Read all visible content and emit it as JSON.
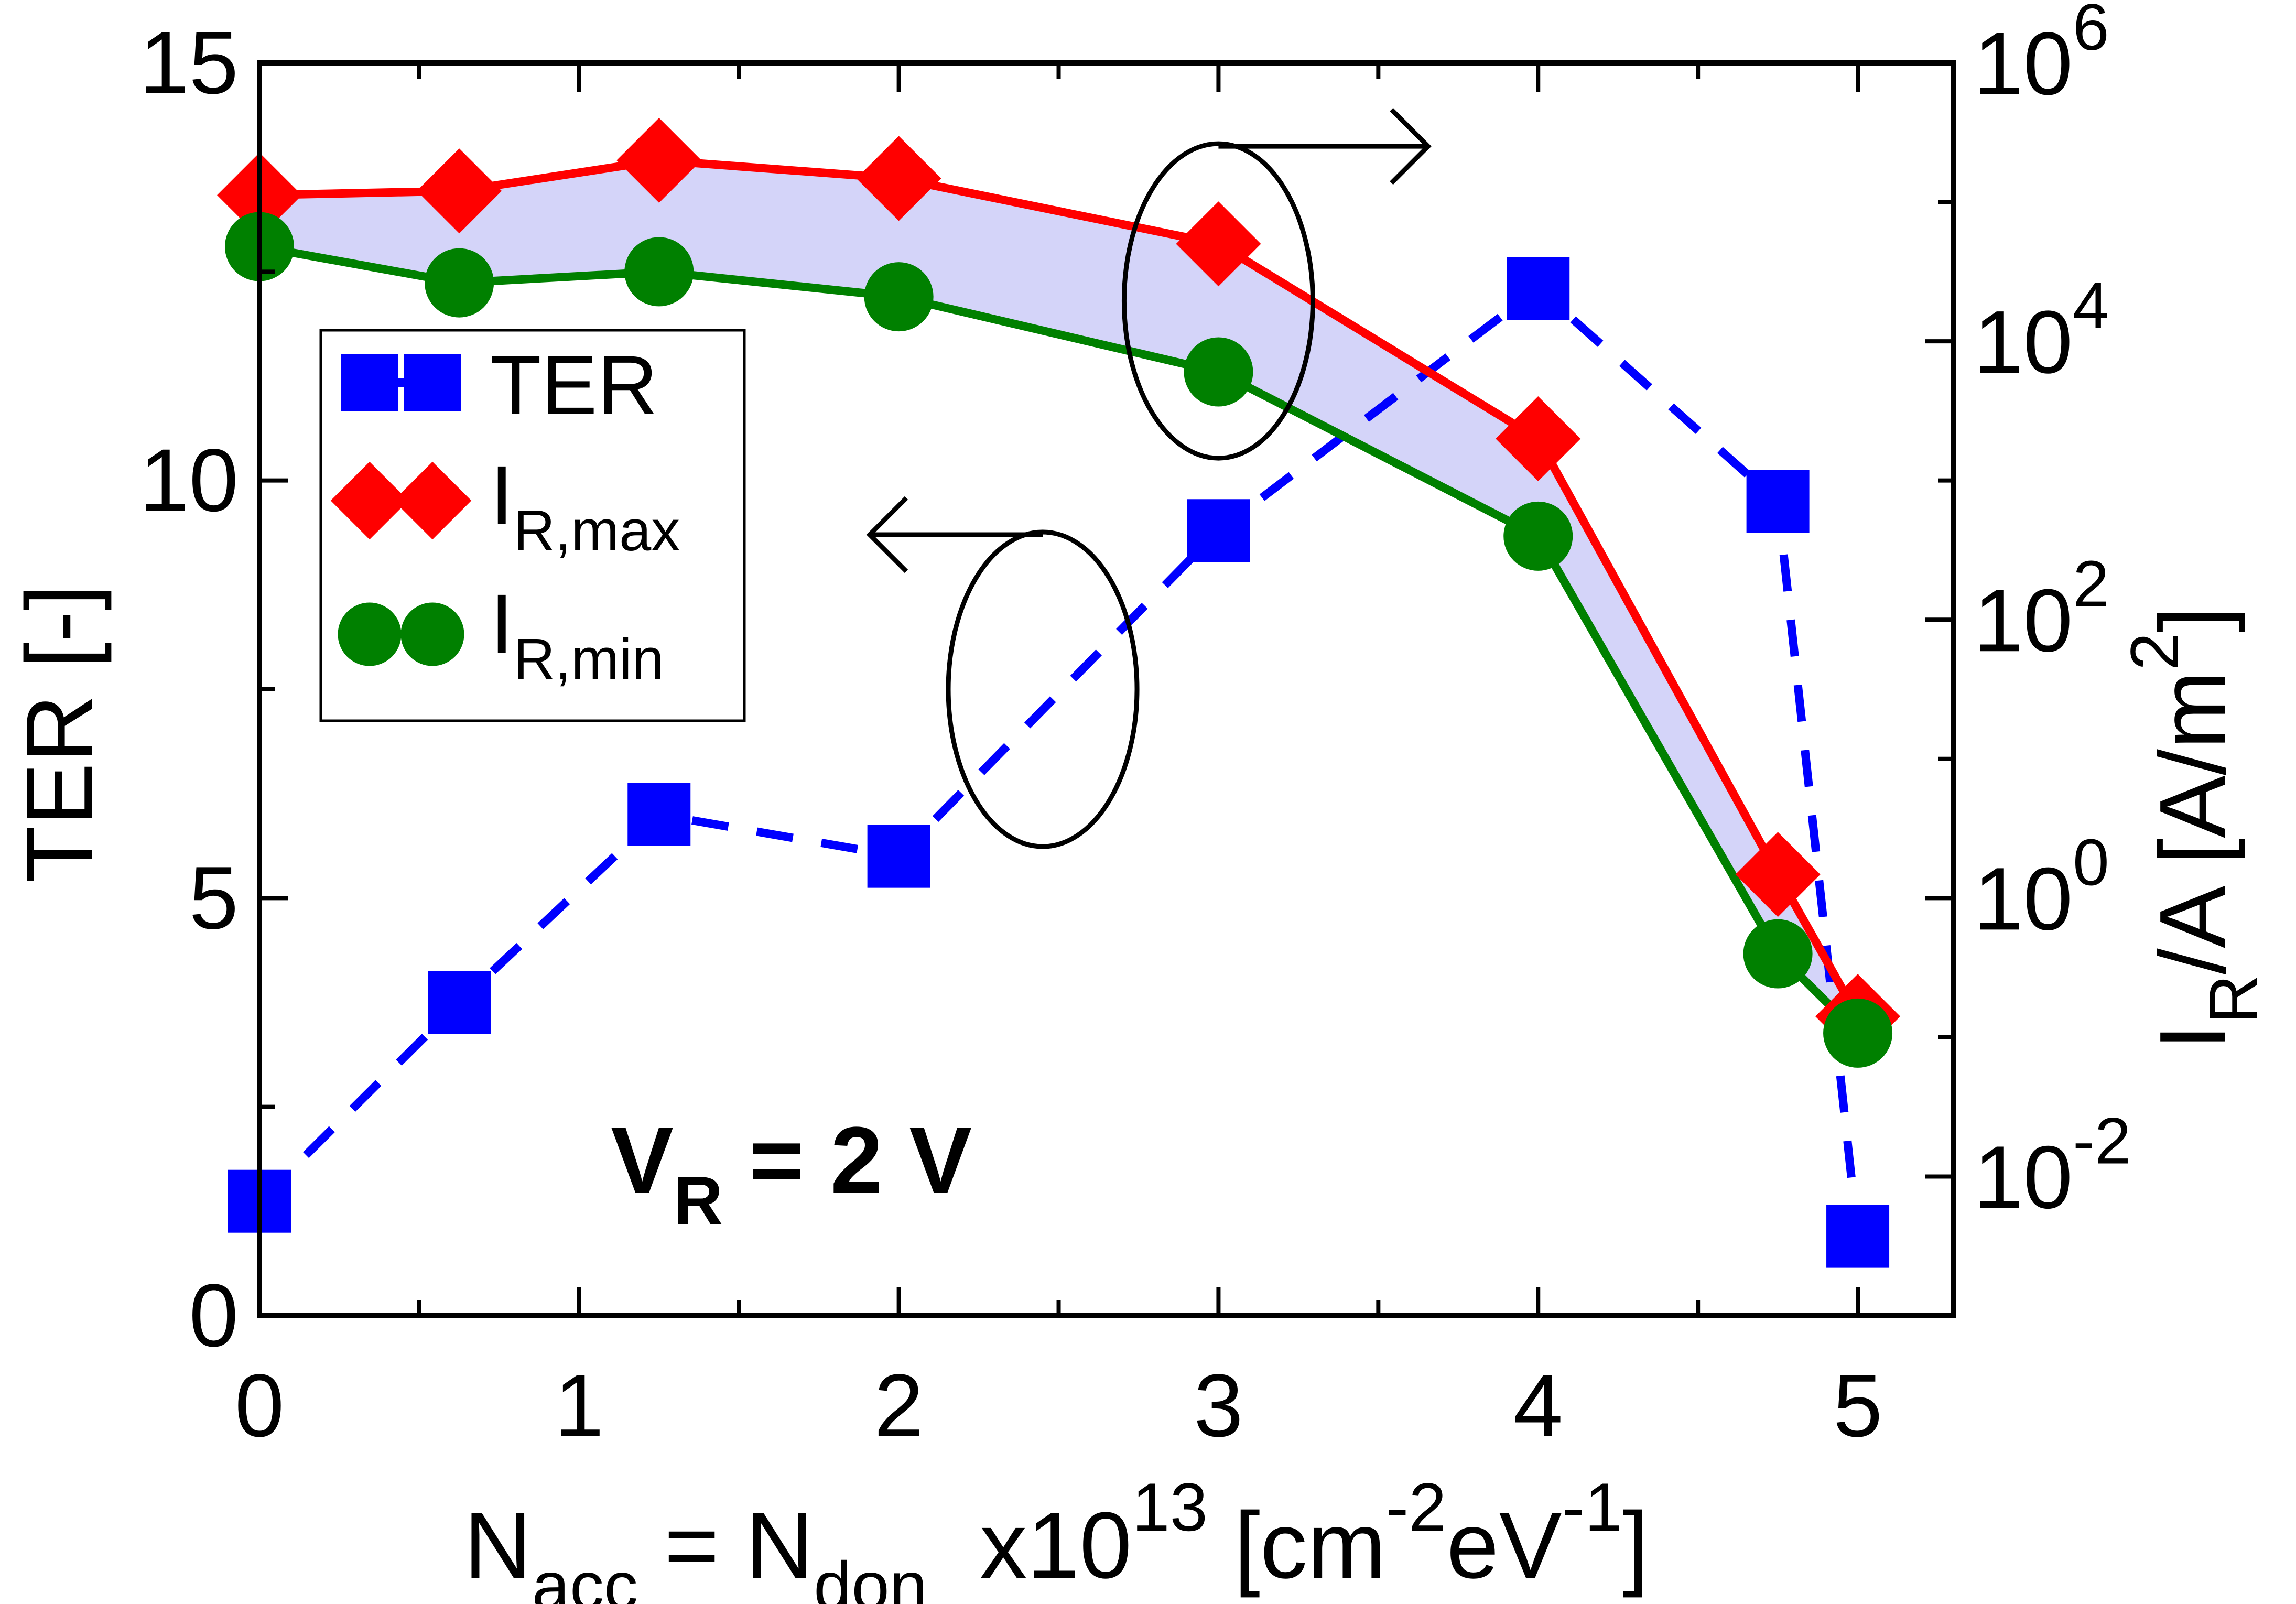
{
  "chart_data": {
    "type": "line",
    "title": "",
    "annotation": {
      "main": "V",
      "sub": "R",
      "rest": " = 2 V"
    },
    "xlabel": {
      "t1": "N",
      "t1sub": "acc",
      "t2": " = N",
      "t2sub": "don",
      "t3": "  x10",
      "t3sup": "13",
      "t4": " [cm",
      "t4sup": "-2",
      "t5": "eV",
      "t5sup": "-1",
      "t6": "]"
    },
    "ylabel_left": "TER [-]",
    "ylabel_right": {
      "t1": "I",
      "t1sub": "R",
      "t2": "/A [A/m",
      "t2sup": "2",
      "t3": "]"
    },
    "xlim": [
      0,
      5.3
    ],
    "ylim_left": [
      0,
      15
    ],
    "ylim_right_log10": [
      -3,
      6
    ],
    "x_ticks": [
      "0",
      "1",
      "2",
      "3",
      "4",
      "5"
    ],
    "y_left_ticks": [
      "0",
      "5",
      "10",
      "15"
    ],
    "y_right_ticks": [
      {
        "base": "10",
        "exp": "-2"
      },
      {
        "base": "10",
        "exp": "0"
      },
      {
        "base": "10",
        "exp": "2"
      },
      {
        "base": "10",
        "exp": "4"
      },
      {
        "base": "10",
        "exp": "6"
      }
    ],
    "legend": [
      {
        "name": "TER",
        "sub": ""
      },
      {
        "name": "I",
        "sub": "R,max"
      },
      {
        "name": "I",
        "sub": "R,min"
      }
    ],
    "series": [
      {
        "name": "TER",
        "axis": "left",
        "color": "#0000ff",
        "marker": "square",
        "dash": true,
        "points": [
          [
            0,
            1.37
          ],
          [
            0.625,
            3.75
          ],
          [
            1.25,
            6.0
          ],
          [
            2,
            5.5
          ],
          [
            3,
            9.4
          ],
          [
            4,
            12.3
          ],
          [
            4.75,
            9.75
          ],
          [
            5,
            0.95
          ]
        ]
      },
      {
        "name": "I_R,max",
        "axis": "right",
        "color": "#ff0000",
        "marker": "diamond",
        "dash": false,
        "points": [
          [
            0,
            5.05
          ],
          [
            0.625,
            5.08
          ],
          [
            1.25,
            5.3
          ],
          [
            2,
            5.17
          ],
          [
            3,
            4.7
          ],
          [
            4,
            3.3
          ],
          [
            4.75,
            0.17
          ],
          [
            5,
            -0.85
          ]
        ]
      },
      {
        "name": "I_R,min",
        "axis": "right",
        "color": "#008000",
        "marker": "circle",
        "dash": false,
        "points": [
          [
            0,
            4.68
          ],
          [
            0.625,
            4.42
          ],
          [
            1.25,
            4.5
          ],
          [
            2,
            4.32
          ],
          [
            3,
            3.78
          ],
          [
            4,
            2.6
          ],
          [
            4.75,
            -0.4
          ],
          [
            5,
            -0.97
          ]
        ]
      }
    ],
    "fill_between": {
      "upper": "I_R,max",
      "lower": "I_R,min",
      "color": "#d4d4f9"
    },
    "axis_indicators": [
      {
        "target": "right",
        "circle_at": [
          3,
          12.15
        ],
        "arrow_dir": "right"
      },
      {
        "target": "left",
        "circle_at": [
          2.45,
          7.5
        ],
        "arrow_dir": "left"
      }
    ],
    "colors": {
      "axis": "#000000",
      "legend_border": "#000000"
    }
  }
}
